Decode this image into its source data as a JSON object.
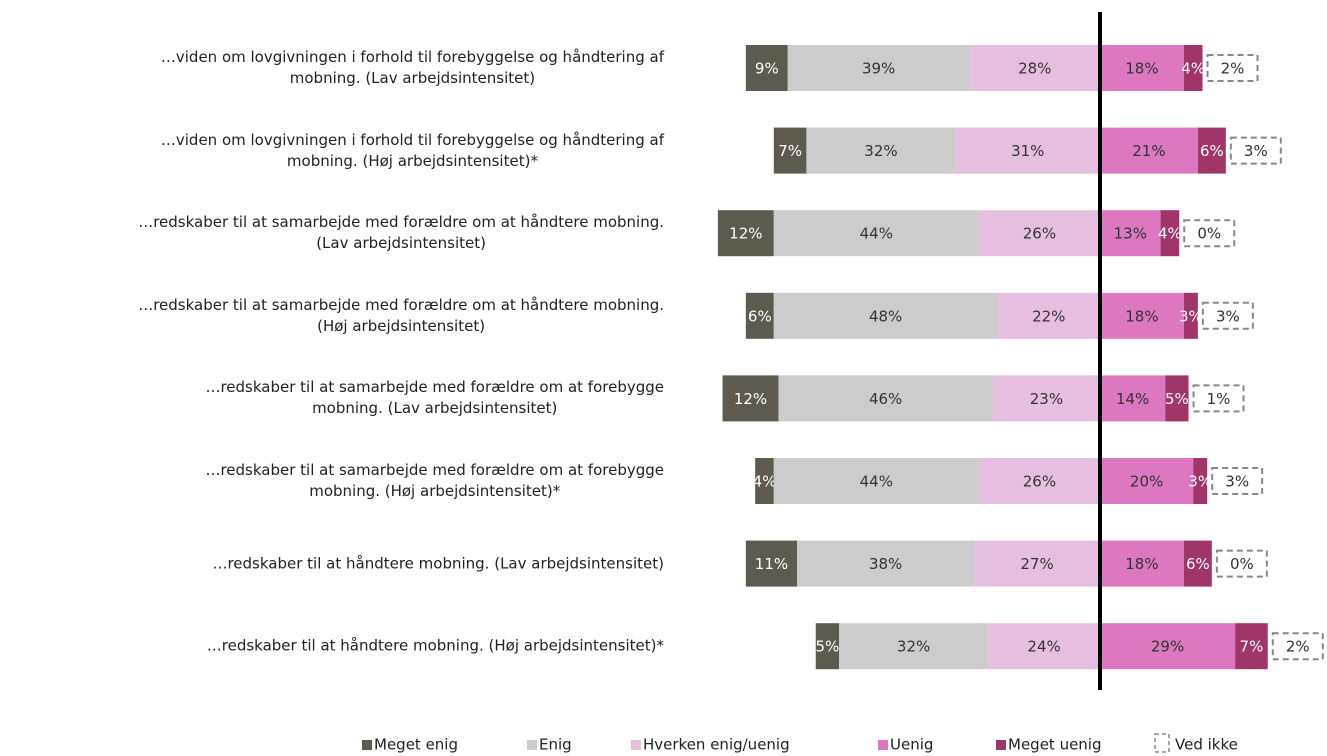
{
  "chart_data": {
    "type": "diverging-bar",
    "categories": [
      "…viden om lovgivningen i forhold til forebyggelse og håndtering af\nmobning. (Lav arbejdsintensitet)",
      "…viden om lovgivningen i forhold til forebyggelse og håndtering af\nmobning. (Høj arbejdsintensitet)*",
      "…redskaber til at samarbejde med forældre om at håndtere mobning.\n(Lav arbejdsintensitet)",
      "…redskaber til at samarbejde med forældre om at håndtere mobning.\n(Høj arbejdsintensitet)",
      "…redskaber til at samarbejde med forældre om at forebygge\nmobning. (Lav arbejdsintensitet)",
      "…redskaber til at samarbejde med forældre om at forebygge\nmobning. (Høj arbejdsintensitet)*",
      "…redskaber til at håndtere mobning. (Lav arbejdsintensitet)",
      "…redskaber til at håndtere mobning. (Høj arbejdsintensitet)*"
    ],
    "series": [
      {
        "name": "Meget enig",
        "color": "#5d5a4e",
        "values": [
          9,
          7,
          12,
          6,
          12,
          4,
          11,
          5
        ],
        "value_labels": [
          "9%",
          "7%",
          "12%",
          "6%",
          "12%",
          "4%",
          "11%",
          "5%"
        ]
      },
      {
        "name": "Enig",
        "color": "#cccccc",
        "values": [
          39,
          32,
          44,
          48,
          46,
          44,
          38,
          32
        ],
        "value_labels": [
          "39%",
          "32%",
          "44%",
          "48%",
          "46%",
          "44%",
          "38%",
          "32%"
        ]
      },
      {
        "name": "Hverken enig/uenig",
        "color": "#e6bfe0",
        "values": [
          28,
          31,
          26,
          22,
          23,
          26,
          27,
          24
        ],
        "value_labels": [
          "28%",
          "31%",
          "26%",
          "22%",
          "23%",
          "26%",
          "27%",
          "24%"
        ]
      },
      {
        "name": "Uenig",
        "color": "#dd77c0",
        "values": [
          18,
          21,
          13,
          18,
          14,
          20,
          18,
          29
        ],
        "value_labels": [
          "18%",
          "21%",
          "13%",
          "18%",
          "14%",
          "20%",
          "18%",
          "29%"
        ]
      },
      {
        "name": "Meget uenig",
        "color": "#a0356a",
        "values": [
          4,
          6,
          4,
          3,
          5,
          3,
          6,
          7
        ],
        "value_labels": [
          "4%",
          "6%",
          "4%",
          "3%",
          "5%",
          "3%",
          "6%",
          "7%"
        ]
      },
      {
        "name": "Ved ikke",
        "color": "#888888",
        "values": [
          2,
          3,
          0,
          3,
          1,
          3,
          0,
          2
        ],
        "value_labels": [
          "2%",
          "3%",
          "0%",
          "3%",
          "1%",
          "3%",
          "0%",
          "2%"
        ]
      }
    ]
  }
}
